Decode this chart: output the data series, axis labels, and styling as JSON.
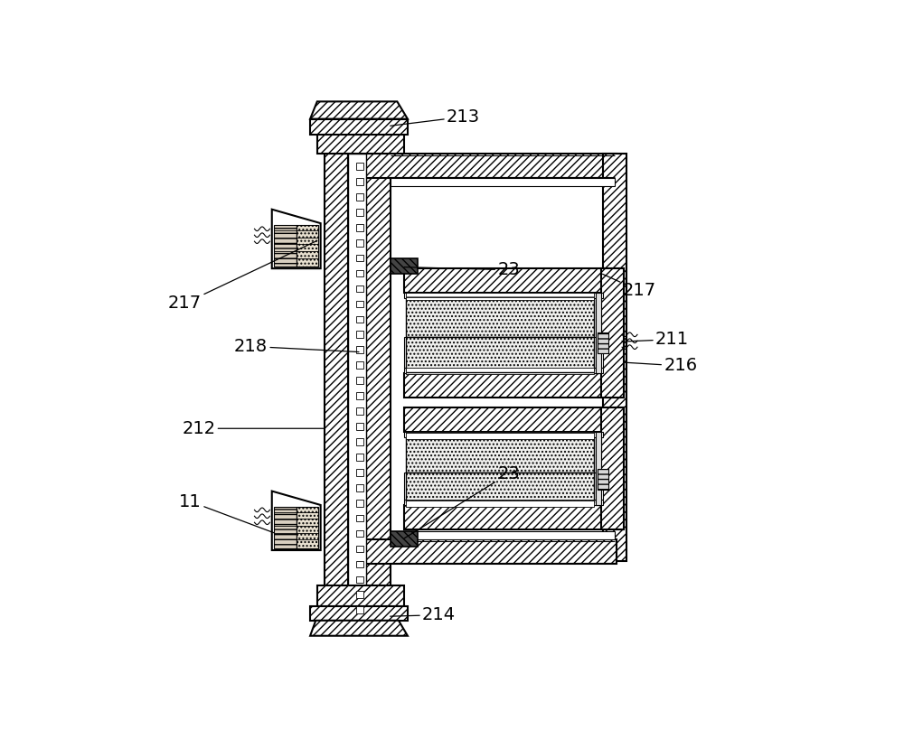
{
  "bg_color": "#ffffff",
  "figsize": [
    10.0,
    8.08
  ],
  "dpi": 100,
  "labels": [
    [
      "213",
      [
        500,
        42
      ],
      [
        500,
        42
      ]
    ],
    [
      "23",
      [
        590,
        270
      ],
      [
        590,
        270
      ]
    ],
    [
      "217",
      [
        100,
        310
      ],
      [
        100,
        310
      ]
    ],
    [
      "217",
      [
        775,
        295
      ],
      [
        775,
        295
      ]
    ],
    [
      "218",
      [
        195,
        372
      ],
      [
        195,
        372
      ]
    ],
    [
      "211",
      [
        800,
        368
      ],
      [
        800,
        368
      ]
    ],
    [
      "216",
      [
        808,
        405
      ],
      [
        808,
        405
      ]
    ],
    [
      "212",
      [
        120,
        490
      ],
      [
        120,
        490
      ]
    ],
    [
      "23",
      [
        620,
        560
      ],
      [
        620,
        560
      ]
    ],
    [
      "11",
      [
        108,
        595
      ],
      [
        108,
        595
      ]
    ],
    [
      "214",
      [
        468,
        762
      ],
      [
        468,
        762
      ]
    ]
  ]
}
